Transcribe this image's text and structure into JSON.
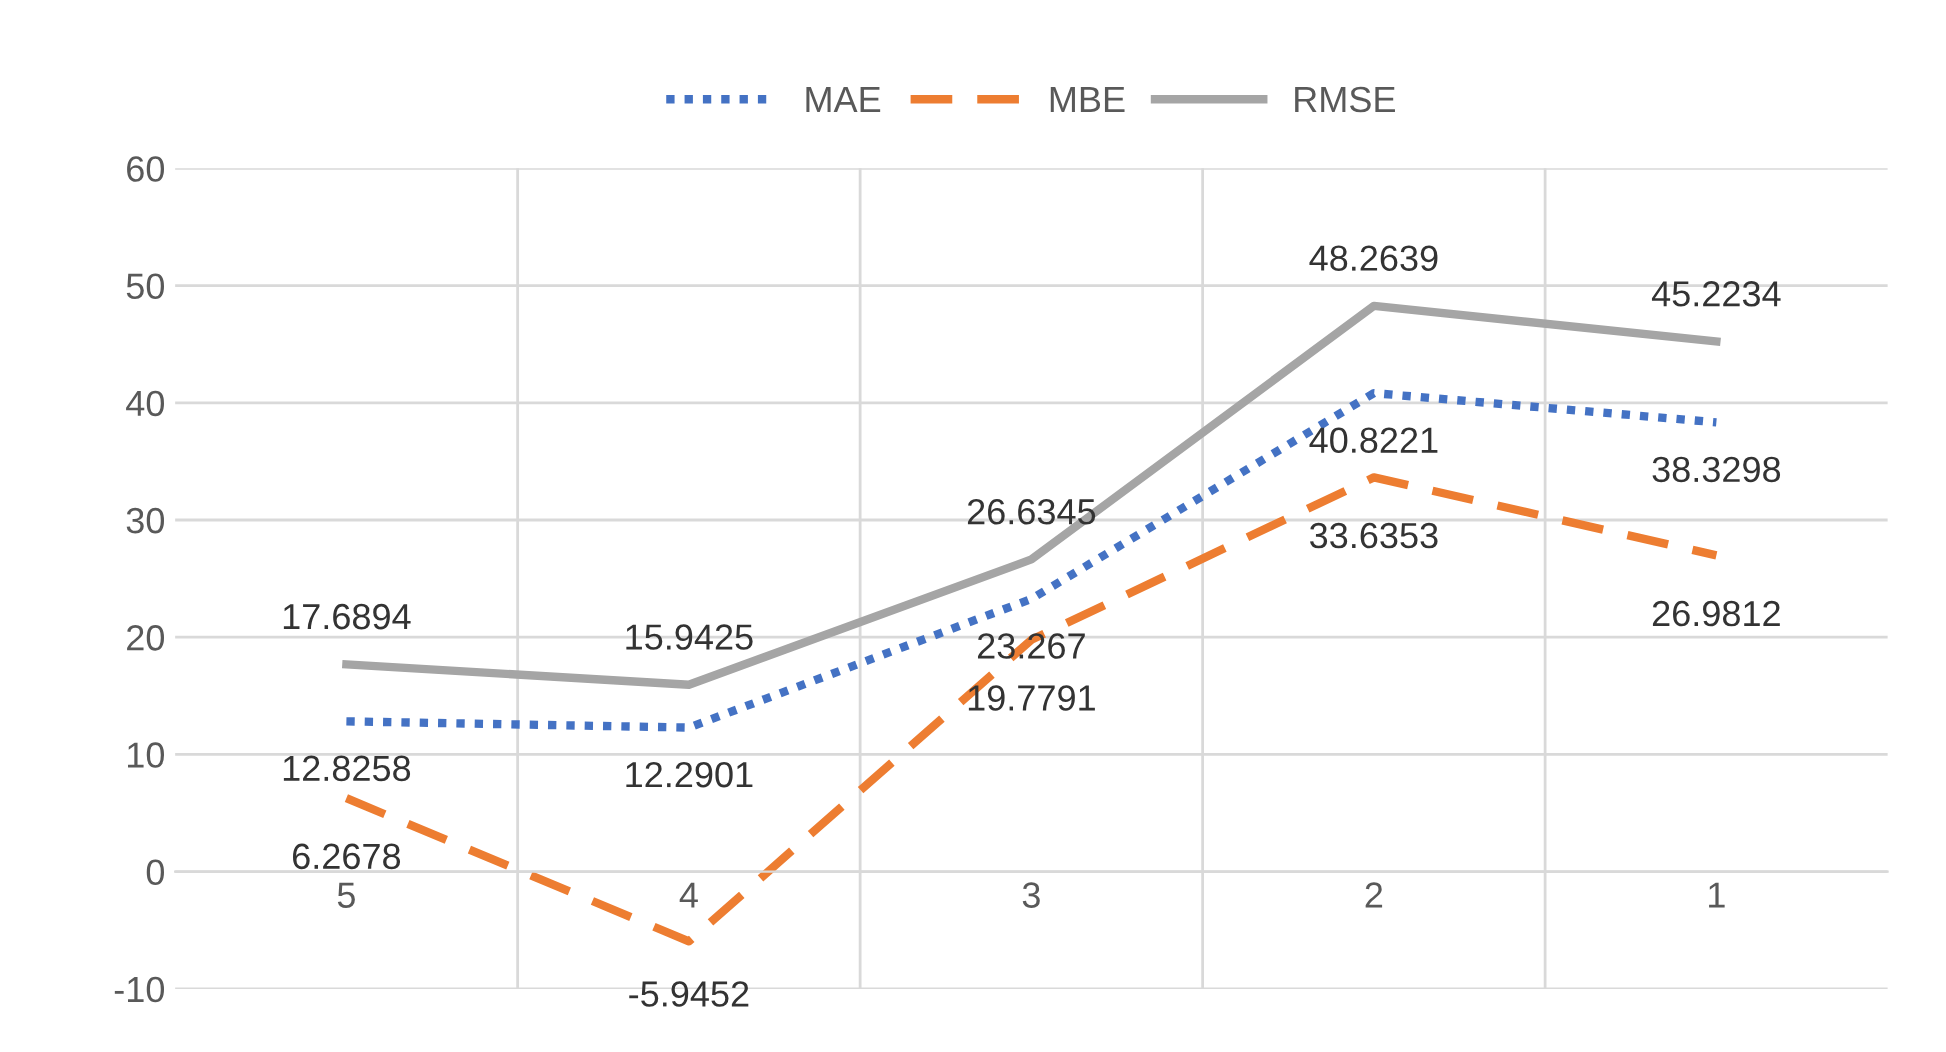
{
  "chart_data": {
    "type": "line",
    "categories": [
      "5",
      "4",
      "3",
      "2",
      "1"
    ],
    "series": [
      {
        "name": "MAE",
        "color": "#4472c4",
        "line_style": "dotted",
        "values": [
          12.8258,
          12.2901,
          23.267,
          40.8221,
          38.3298
        ]
      },
      {
        "name": "MBE",
        "color": "#ed7d31",
        "line_style": "dashed",
        "values": [
          6.2678,
          -5.9452,
          19.7791,
          33.6353,
          26.9812
        ]
      },
      {
        "name": "RMSE",
        "color": "#a5a5a5",
        "line_style": "solid",
        "values": [
          17.6894,
          15.9425,
          26.6345,
          48.2639,
          45.2234
        ]
      }
    ],
    "ylim": [
      -10,
      60
    ],
    "yticks": [
      -10,
      0,
      10,
      20,
      30,
      40,
      50,
      60
    ],
    "grid": true,
    "legend": "top",
    "data_labels": true,
    "marker": "none"
  }
}
